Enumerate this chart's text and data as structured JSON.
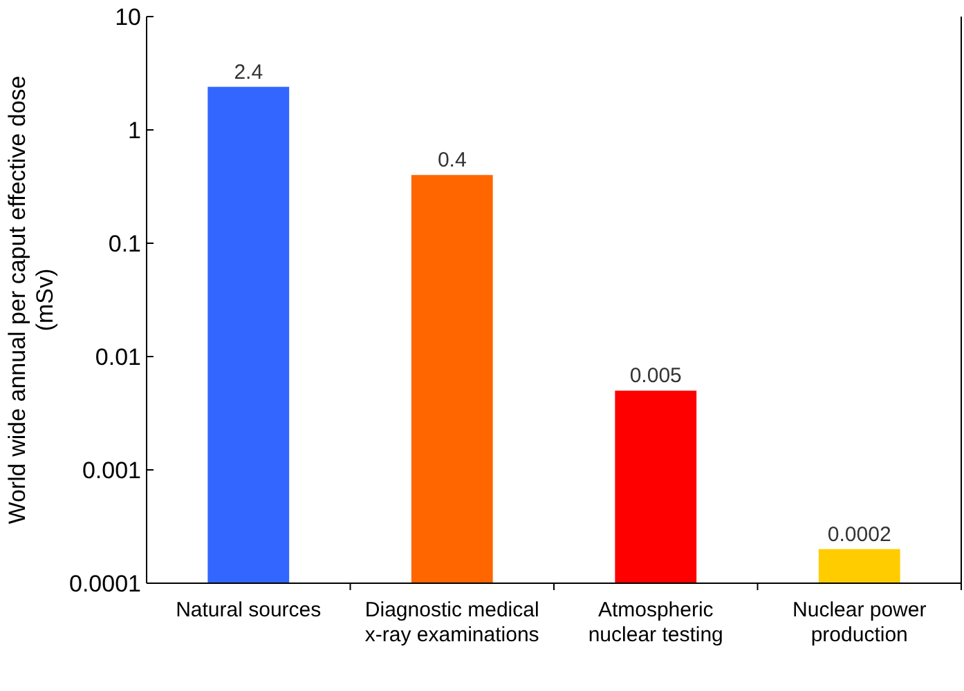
{
  "chart_data": {
    "type": "bar",
    "ylabel": "World wide annual per caput effective dose (mSv)",
    "categories": [
      "Natural sources",
      "Diagnostic medical x-ray examinations",
      "Atmospheric nuclear testing",
      "Nuclear power production"
    ],
    "values": [
      2.4,
      0.4,
      0.005,
      0.0002
    ],
    "colors": [
      "#3366ff",
      "#ff6600",
      "#ff0000",
      "#ffcc00"
    ],
    "log": true,
    "ylim": [
      0.0001,
      10
    ],
    "yticks": [
      0.0001,
      0.001,
      0.01,
      0.1,
      1,
      10
    ],
    "data_labels": true
  }
}
